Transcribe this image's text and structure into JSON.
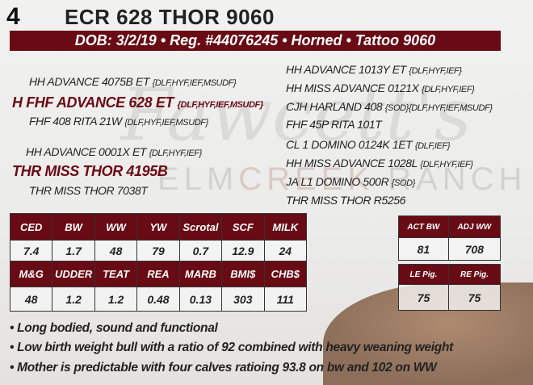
{
  "lot": "4",
  "title": "ECR 628 THOR 9060",
  "info_bar": "DOB: 3/2/19 • Reg. #44076245 • Horned • Tattoo 9060",
  "watermark": {
    "script": "Fawcett's",
    "ranch_a": "ELM",
    "ranch_b": "CREEK",
    "ranch_c": " RANCH"
  },
  "pedigree": {
    "sire_sire": {
      "name": "HH ADVANCE 4075B ET",
      "tags": "{DLF,HYF,IEF,MSUDF}"
    },
    "sire": {
      "name": "H FHF ADVANCE 628 ET",
      "tags": "{DLF,HYF,IEF,MSUDF}"
    },
    "sire_dam": {
      "name": "FHF 408 RITA 21W",
      "tags": "{DLF,HYF,IEF,MSUDF}"
    },
    "dam_sire": {
      "name": "HH ADVANCE 0001X ET",
      "tags": "{DLF,HYF,IEF}"
    },
    "dam": {
      "name": "THR MISS THOR 4195B"
    },
    "dam_dam": {
      "name": "THR MISS THOR 7038T"
    },
    "right": [
      {
        "name": "HH ADVANCE 1013Y ET",
        "tags": "{DLF,HYF,IEF}"
      },
      {
        "name": "HH MISS ADVANCE 0121X",
        "tags": "{DLF,HYF,IEF}"
      },
      {
        "name": "CJH HARLAND 408",
        "tags": "{SOD}{DLF,HYF,IEF,MSUDF}"
      },
      {
        "name": "FHF 45P RITA 101T",
        "tags": ""
      },
      {
        "name": "CL 1 DOMINO 0124K 1ET",
        "tags": "{DLF,IEF}"
      },
      {
        "name": "HH MISS ADVANCE 1028L",
        "tags": "{DLF,HYF,IEF}"
      },
      {
        "name": "JA L1 DOMINO 500R",
        "tags": "{SOD}"
      },
      {
        "name": "THR MISS THOR R5256",
        "tags": ""
      }
    ]
  },
  "epds": {
    "row1_headers": [
      "CED",
      "BW",
      "WW",
      "YW",
      "Scrotal",
      "SCF",
      "MILK"
    ],
    "row1_values": [
      "7.4",
      "1.7",
      "48",
      "79",
      "0.7",
      "12.9",
      "24"
    ],
    "row2_headers": [
      "M&G",
      "UDDER",
      "TEAT",
      "REA",
      "MARB",
      "BMI$",
      "CHB$"
    ],
    "row2_values": [
      "48",
      "1.2",
      "1.2",
      "0.48",
      "0.13",
      "303",
      "111"
    ]
  },
  "weights": {
    "headers": [
      "ACT BW",
      "ADJ WW"
    ],
    "values": [
      "81",
      "708"
    ]
  },
  "pigment": {
    "headers": [
      "LE Pig.",
      "RE Pig."
    ],
    "values": [
      "75",
      "75"
    ]
  },
  "bullets": [
    "• Long bodied, sound and functional",
    "• Low birth weight bull with a ratio of 92 combined with heavy weaning weight",
    "• Mother is predictable with four calves ratioing 93.8 on bw and 102 on WW"
  ]
}
